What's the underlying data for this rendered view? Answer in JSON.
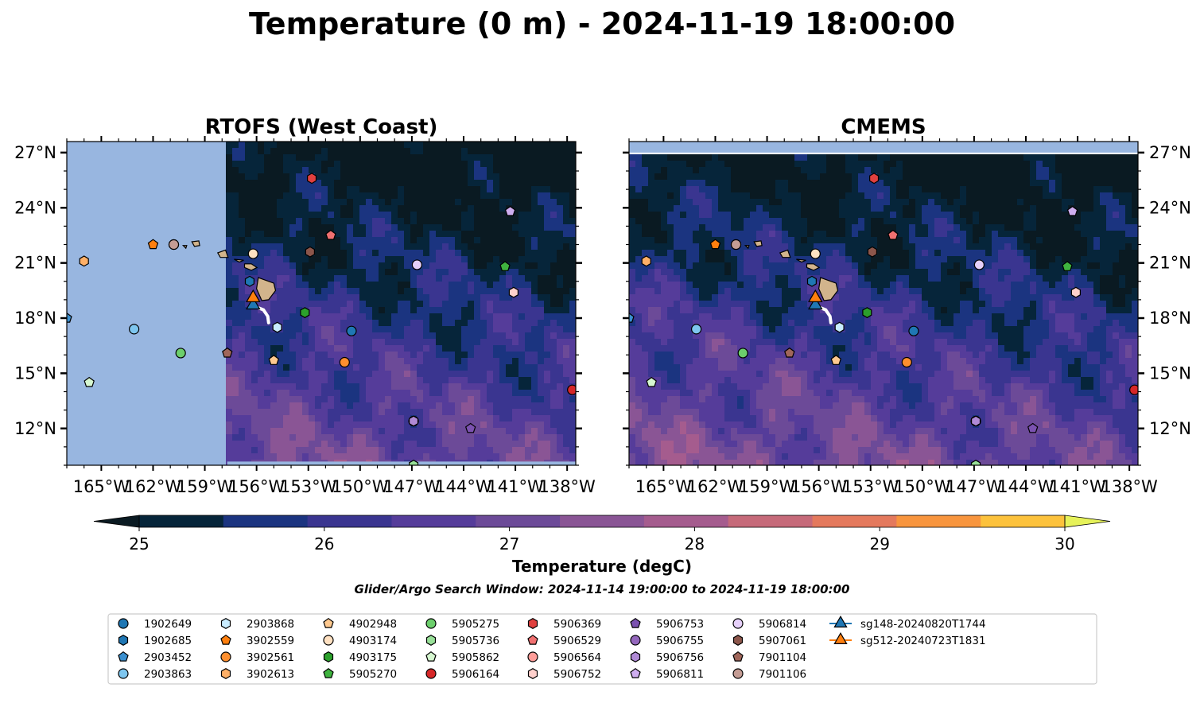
{
  "title": "Temperature (0 m) - 2024-11-19 18:00:00",
  "note": "Glider/Argo Search Window: 2024-11-14 19:00:00 to 2024-11-19 18:00:00",
  "chart_data": {
    "type": "map",
    "xlim": [
      -167,
      -137.5
    ],
    "ylim": [
      10,
      27.6
    ],
    "x_ticks": [
      -165,
      -162,
      -159,
      -156,
      -153,
      -150,
      -147,
      -144,
      -141,
      -138
    ],
    "x_tick_labels": [
      "165°W",
      "162°W",
      "159°W",
      "156°W",
      "153°W",
      "150°W",
      "147°W",
      "144°W",
      "141°W",
      "138°W"
    ],
    "y_ticks": [
      12,
      15,
      18,
      21,
      24,
      27
    ],
    "y_tick_labels": [
      "12°N",
      "15°N",
      "18°N",
      "21°N",
      "24°N",
      "27°N"
    ],
    "panels": [
      {
        "title": "RTOFS (West Coast)",
        "data_lon_min": -157.7
      },
      {
        "title": "CMEMS",
        "data_lon_min": -167
      }
    ],
    "colorbar": {
      "label": "Temperature (degC)",
      "ticks": [
        25,
        26,
        27,
        28,
        29,
        30
      ],
      "levels": [
        25,
        25.5,
        26,
        26.5,
        27,
        27.5,
        28,
        28.5,
        29,
        29.5,
        30
      ],
      "colors": [
        "#06253a",
        "#1b3480",
        "#3a3590",
        "#553c9a",
        "#6c4a98",
        "#8a5595",
        "#a55c8e",
        "#c66a7a",
        "#e4795d",
        "#f8953e",
        "#fcc23c"
      ],
      "extend_low": "#0a1a22",
      "extend_high": "#e6f25a"
    },
    "colors": {
      "land": "#d2b48c",
      "nodata": "#98b6e0"
    },
    "legend": [
      {
        "name": "1902649",
        "marker": "circle",
        "color": "#1f77b4"
      },
      {
        "name": "1902685",
        "marker": "hexagon",
        "color": "#1f77b4"
      },
      {
        "name": "2903452",
        "marker": "pentagon",
        "color": "#3a8fcf"
      },
      {
        "name": "2903863",
        "marker": "circle",
        "color": "#7ec6ef"
      },
      {
        "name": "2903868",
        "marker": "hexagon",
        "color": "#c9ecff"
      },
      {
        "name": "3902559",
        "marker": "pentagon",
        "color": "#ff7f0e"
      },
      {
        "name": "3902561",
        "marker": "circle",
        "color": "#ff8f2e"
      },
      {
        "name": "3902613",
        "marker": "hexagon",
        "color": "#ffb067"
      },
      {
        "name": "4902948",
        "marker": "pentagon",
        "color": "#ffc98f"
      },
      {
        "name": "4903174",
        "marker": "circle",
        "color": "#ffe1c2"
      },
      {
        "name": "4903175",
        "marker": "hexagon",
        "color": "#2ca02c"
      },
      {
        "name": "5905270",
        "marker": "pentagon",
        "color": "#3fb33f"
      },
      {
        "name": "5905275",
        "marker": "circle",
        "color": "#6ccf6c"
      },
      {
        "name": "5905736",
        "marker": "hexagon",
        "color": "#98e098"
      },
      {
        "name": "5905862",
        "marker": "pentagon",
        "color": "#d6f7d0"
      },
      {
        "name": "5906164",
        "marker": "circle",
        "color": "#d62728"
      },
      {
        "name": "5906369",
        "marker": "hexagon",
        "color": "#e0403f"
      },
      {
        "name": "5906529",
        "marker": "pentagon",
        "color": "#f07070"
      },
      {
        "name": "5906564",
        "marker": "circle",
        "color": "#ff9d99"
      },
      {
        "name": "5906752",
        "marker": "hexagon",
        "color": "#ffd0cc"
      },
      {
        "name": "5906753",
        "marker": "pentagon",
        "color": "#7b52b0"
      },
      {
        "name": "5906755",
        "marker": "circle",
        "color": "#9467bd"
      },
      {
        "name": "5906756",
        "marker": "hexagon",
        "color": "#b08ad6"
      },
      {
        "name": "5906811",
        "marker": "pentagon",
        "color": "#cfaef0"
      },
      {
        "name": "5906814",
        "marker": "circle",
        "color": "#e6d0fa"
      },
      {
        "name": "5907061",
        "marker": "hexagon",
        "color": "#8c564b"
      },
      {
        "name": "7901104",
        "marker": "pentagon",
        "color": "#a0665a"
      },
      {
        "name": "7901106",
        "marker": "circle",
        "color": "#c49c94"
      },
      {
        "name": "sg148-20240820T1744",
        "marker": "triangle",
        "color": "#1f77b4"
      },
      {
        "name": "sg512-20240723T1831",
        "marker": "triangle",
        "color": "#ff7f0e"
      }
    ],
    "floats": [
      {
        "id": "1902649",
        "lon": -150.5,
        "lat": 17.3
      },
      {
        "id": "1902685",
        "lon": -156.4,
        "lat": 20.0
      },
      {
        "id": "2903452",
        "lon": -167.0,
        "lat": 18.0
      },
      {
        "id": "2903863",
        "lon": -163.1,
        "lat": 17.4
      },
      {
        "id": "2903868",
        "lon": -154.8,
        "lat": 17.5
      },
      {
        "id": "3902559",
        "lon": -162.0,
        "lat": 22.0
      },
      {
        "id": "3902561",
        "lon": -150.9,
        "lat": 15.6
      },
      {
        "id": "3902613",
        "lon": -166.0,
        "lat": 21.1
      },
      {
        "id": "4902948",
        "lon": -155.0,
        "lat": 15.7
      },
      {
        "id": "4903174",
        "lon": -156.2,
        "lat": 21.5
      },
      {
        "id": "4903175",
        "lon": -153.2,
        "lat": 18.3
      },
      {
        "id": "5905270",
        "lon": -141.6,
        "lat": 20.8
      },
      {
        "id": "5905275",
        "lon": -160.4,
        "lat": 16.1
      },
      {
        "id": "5905736",
        "lon": -146.9,
        "lat": 10.0
      },
      {
        "id": "5905862",
        "lon": -165.7,
        "lat": 14.5
      },
      {
        "id": "5906164",
        "lon": -137.7,
        "lat": 14.1
      },
      {
        "id": "5906369",
        "lon": -152.8,
        "lat": 25.6
      },
      {
        "id": "5906529",
        "lon": -151.7,
        "lat": 22.5
      },
      {
        "id": "5906564",
        "lon": -160.8,
        "lat": 22.0
      },
      {
        "id": "5906752",
        "lon": -141.1,
        "lat": 19.4
      },
      {
        "id": "5906753",
        "lon": -143.6,
        "lat": 12.0
      },
      {
        "id": "5906755",
        "lon": -146.9,
        "lat": 12.4
      },
      {
        "id": "5906756",
        "lon": -146.9,
        "lat": 12.4
      },
      {
        "id": "5906811",
        "lon": -141.3,
        "lat": 23.8
      },
      {
        "id": "5906814",
        "lon": -146.7,
        "lat": 20.9
      },
      {
        "id": "5907061",
        "lon": -152.9,
        "lat": 21.6
      },
      {
        "id": "7901104",
        "lon": -157.7,
        "lat": 16.1
      },
      {
        "id": "7901106",
        "lon": -160.8,
        "lat": 22.0
      }
    ],
    "gliders": [
      {
        "id": "sg148-20240820T1744",
        "lon": -156.2,
        "lat": 18.7
      },
      {
        "id": "sg512-20240723T1831",
        "lon": -156.2,
        "lat": 19.1
      }
    ]
  }
}
